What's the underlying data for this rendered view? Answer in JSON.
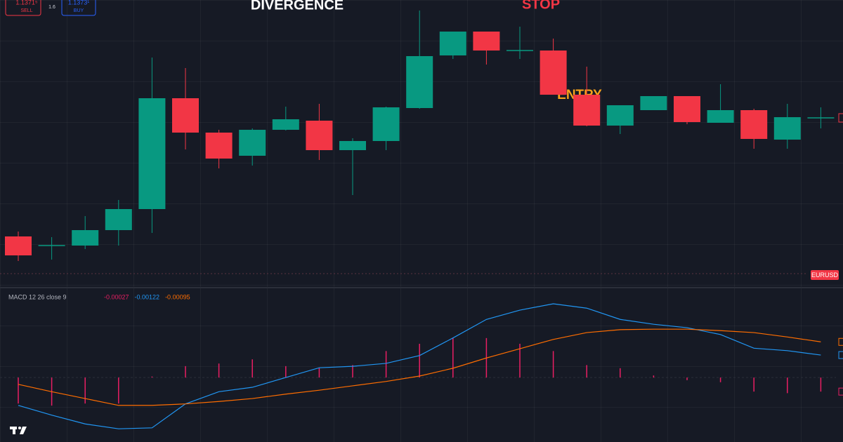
{
  "top_bar": {
    "sell_price": "1.1371⁵",
    "sell_label": "SELL",
    "spread": "1.6",
    "buy_price": "1.1373¹",
    "buy_label": "BUY"
  },
  "chart_data": [
    {
      "type": "candlestick",
      "symbol": "EURUSD",
      "annotations": [
        "DIVERGENCE",
        "STOP",
        "ENTRY"
      ],
      "up_color": "#089981",
      "down_color": "#f23645",
      "ylim": [
        1.136,
        1.14
      ],
      "open": [
        1.13663,
        1.1365,
        1.1365,
        1.13672,
        1.13702,
        1.1386,
        1.13811,
        1.13778,
        1.13815,
        1.13828,
        1.13786,
        1.13799,
        1.13846,
        1.13921,
        1.13955,
        1.13928,
        1.13928,
        1.13865,
        1.13821,
        1.13843,
        1.13863,
        1.13825,
        1.13843,
        1.13801,
        1.13832
      ],
      "high": [
        1.1367,
        1.13662,
        1.13692,
        1.13715,
        1.13918,
        1.13903,
        1.13815,
        1.13817,
        1.13848,
        1.13852,
        1.13803,
        1.13848,
        1.13985,
        1.13955,
        1.13955,
        1.13962,
        1.13945,
        1.13905,
        1.1385,
        1.13863,
        1.13863,
        1.1388,
        1.13845,
        1.13852,
        1.13847
      ],
      "low": [
        1.13628,
        1.1363,
        1.13645,
        1.1365,
        1.13668,
        1.13787,
        1.1376,
        1.13764,
        1.13814,
        1.13772,
        1.13722,
        1.13786,
        1.13845,
        1.13916,
        1.13908,
        1.13916,
        1.13865,
        1.1382,
        1.13809,
        1.13843,
        1.13823,
        1.13825,
        1.13788,
        1.13788,
        1.13817
      ],
      "close": [
        1.13636,
        1.1365,
        1.13672,
        1.13702,
        1.1386,
        1.13811,
        1.13774,
        1.13815,
        1.1383,
        1.13786,
        1.13799,
        1.13847,
        1.1392,
        1.13955,
        1.13928,
        1.13928,
        1.13865,
        1.13821,
        1.1385,
        1.13863,
        1.13826,
        1.13843,
        1.13802,
        1.13833,
        1.13832
      ]
    },
    {
      "type": "macd",
      "title": "MACD 12 26 close 9",
      "ylim": [
        -0.003,
        0.00016
      ],
      "y2lim": [
        -0.00124,
        0.00173
      ],
      "series": [
        {
          "kind": "bar",
          "axis": "y2",
          "color": "#e91e63",
          "values": [
            -0.0005,
            -0.00054,
            -0.0005,
            -0.0005,
            2e-05,
            0.00022,
            0.00027,
            0.00035,
            0.00022,
            0.00019,
            0.00024,
            0.00051,
            0.00065,
            0.00076,
            0.00076,
            0.00065,
            0.00051,
            0.00024,
            0.00018,
            4e-05,
            -5e-05,
            -9e-05,
            -0.00027,
            -0.0003,
            -0.00027
          ]
        },
        {
          "kind": "line",
          "color": "#2196f3",
          "values": [
            -0.00225,
            -0.00245,
            -0.00263,
            -0.00273,
            -0.00271,
            -0.00222,
            -0.00197,
            -0.00188,
            -0.00168,
            -0.00148,
            -0.00145,
            -0.00139,
            -0.00123,
            -0.00087,
            -0.00049,
            -0.0003,
            -0.00017,
            -0.00026,
            -0.00049,
            -0.00059,
            -0.00066,
            -0.0008,
            -0.00108,
            -0.00113,
            -0.00122
          ]
        },
        {
          "kind": "line",
          "color": "#ff6d00",
          "values": [
            -0.00182,
            -0.00197,
            -0.00211,
            -0.00225,
            -0.00225,
            -0.00222,
            -0.00217,
            -0.00211,
            -0.00202,
            -0.00194,
            -0.00185,
            -0.00176,
            -0.00165,
            -0.00149,
            -0.00128,
            -0.00109,
            -0.0009,
            -0.00076,
            -0.0007,
            -0.00069,
            -0.00069,
            -0.00072,
            -0.00076,
            -0.00085,
            -0.00095
          ]
        }
      ]
    }
  ]
}
